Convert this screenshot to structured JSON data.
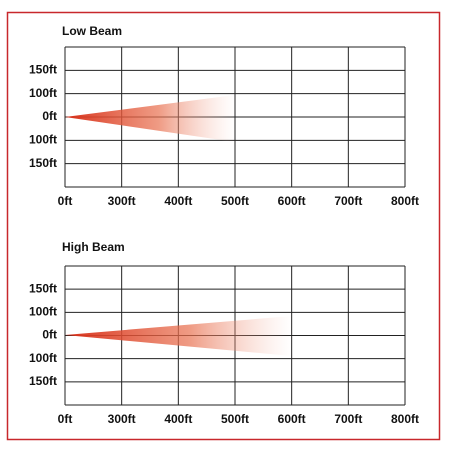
{
  "panels": [
    {
      "title": "Low Beam",
      "y_labels": [
        "150ft",
        "100ft",
        "0ft",
        "100ft",
        "150ft"
      ],
      "x_labels": [
        "0ft",
        "300ft",
        "400ft",
        "500ft",
        "600ft",
        "700ft",
        "800ft"
      ]
    },
    {
      "title": "High Beam",
      "y_labels": [
        "150ft",
        "100ft",
        "0ft",
        "100ft",
        "150ft"
      ],
      "x_labels": [
        "0ft",
        "300ft",
        "400ft",
        "500ft",
        "600ft",
        "700ft",
        "800ft"
      ]
    }
  ]
}
